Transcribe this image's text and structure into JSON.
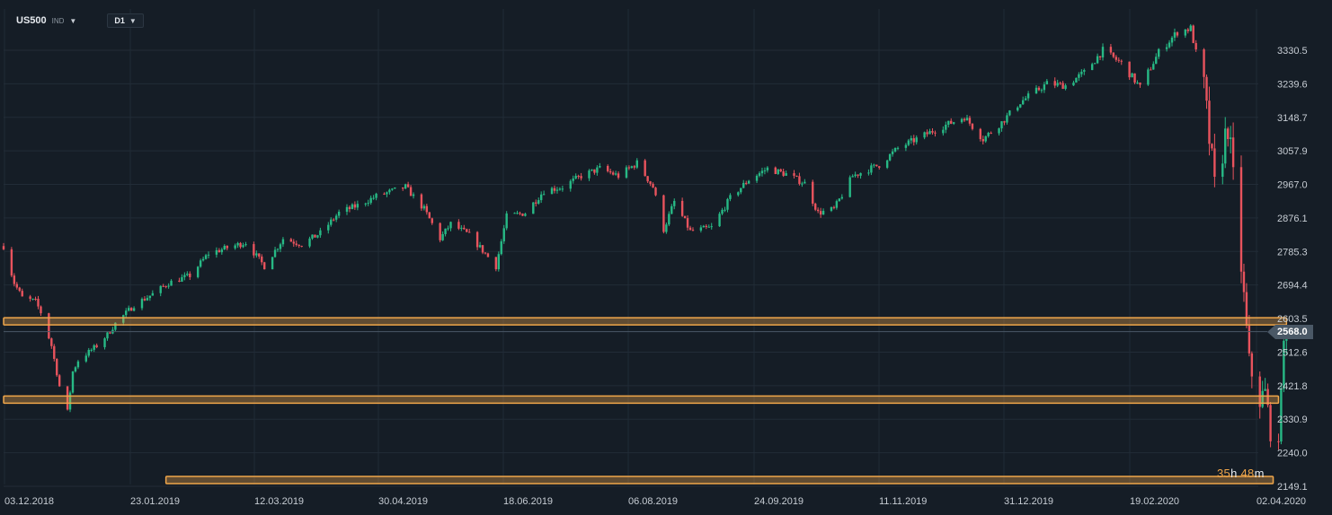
{
  "toolbar": {
    "symbol": "US500",
    "symbol_type": "IND",
    "timeframe": "D1",
    "caret_icon": "chevron-down-icon"
  },
  "colors": {
    "background": "#151d26",
    "grid": "#222c37",
    "bull": "#27b985",
    "bear": "#e8535d",
    "level": "#f0a64a",
    "current_price": "#4a5866"
  },
  "timer": {
    "hours": "35",
    "hours_unit": "h",
    "minutes": "48",
    "minutes_unit": "m"
  },
  "chart_data": {
    "type": "candlestick",
    "symbol": "US500",
    "timeframe": "D1",
    "y_ticks": [
      3330.5,
      3239.6,
      3148.7,
      3057.9,
      2967.0,
      2876.1,
      2785.3,
      2694.4,
      2603.5,
      2512.6,
      2421.8,
      2330.9,
      2240.0,
      2149.1
    ],
    "y_tick_labels": [
      "3330.5",
      "3239.6",
      "3148.7",
      "3057.9",
      "2967.0",
      "2876.1",
      "2785.3",
      "2694.4",
      "2603.5",
      "2512.6",
      "2421.8",
      "2330.9",
      "2240.0",
      "2149.1"
    ],
    "ylim": [
      2149.1,
      3385.0
    ],
    "x_tick_labels": [
      "03.12.2018",
      "23.01.2019",
      "12.03.2019",
      "30.04.2019",
      "18.06.2019",
      "06.08.2019",
      "24.09.2019",
      "11.11.2019",
      "31.12.2019",
      "19.02.2020",
      "02.04.2020"
    ],
    "x_range_dates": [
      "2018-11-30",
      "2020-04-04"
    ],
    "current_price": 2568.0,
    "current_price_label": "2568.0",
    "horizontal_levels": [
      {
        "price": 2596.0,
        "from": "2018-11-30",
        "to": "2020-03-26"
      },
      {
        "price": 2384.0,
        "from": "2018-11-30",
        "to": "2020-03-23"
      },
      {
        "price": 2166.0,
        "from": "2019-01-30",
        "to": "2020-03-21"
      }
    ],
    "path_points": [
      [
        "2018-11-30",
        2800
      ],
      [
        "2018-12-04",
        2700
      ],
      [
        "2018-12-07",
        2660
      ],
      [
        "2018-12-12",
        2650
      ],
      [
        "2018-12-14",
        2620
      ],
      [
        "2018-12-18",
        2530
      ],
      [
        "2018-12-21",
        2420
      ],
      [
        "2018-12-24",
        2351
      ],
      [
        "2018-12-26",
        2460
      ],
      [
        "2018-12-28",
        2490
      ],
      [
        "2019-01-04",
        2530
      ],
      [
        "2019-01-08",
        2560
      ],
      [
        "2019-01-11",
        2590
      ],
      [
        "2019-01-18",
        2640
      ],
      [
        "2019-01-25",
        2670
      ],
      [
        "2019-01-31",
        2700
      ],
      [
        "2019-02-08",
        2720
      ],
      [
        "2019-02-15",
        2780
      ],
      [
        "2019-02-22",
        2795
      ],
      [
        "2019-03-01",
        2810
      ],
      [
        "2019-03-08",
        2745
      ],
      [
        "2019-03-15",
        2820
      ],
      [
        "2019-03-22",
        2805
      ],
      [
        "2019-03-29",
        2835
      ],
      [
        "2019-04-05",
        2890
      ],
      [
        "2019-04-12",
        2910
      ],
      [
        "2019-04-19",
        2935
      ],
      [
        "2019-04-30",
        2960
      ],
      [
        "2019-05-07",
        2900
      ],
      [
        "2019-05-13",
        2820
      ],
      [
        "2019-05-17",
        2860
      ],
      [
        "2019-05-24",
        2830
      ],
      [
        "2019-06-03",
        2745
      ],
      [
        "2019-06-07",
        2880
      ],
      [
        "2019-06-14",
        2890
      ],
      [
        "2019-06-21",
        2950
      ],
      [
        "2019-06-28",
        2960
      ],
      [
        "2019-07-05",
        2990
      ],
      [
        "2019-07-12",
        3010
      ],
      [
        "2019-07-19",
        2990
      ],
      [
        "2019-07-26",
        3025
      ],
      [
        "2019-08-01",
        2960
      ],
      [
        "2019-08-05",
        2845
      ],
      [
        "2019-08-09",
        2920
      ],
      [
        "2019-08-15",
        2840
      ],
      [
        "2019-08-23",
        2850
      ],
      [
        "2019-08-30",
        2930
      ],
      [
        "2019-09-06",
        2980
      ],
      [
        "2019-09-13",
        3010
      ],
      [
        "2019-09-20",
        2995
      ],
      [
        "2019-09-27",
        2970
      ],
      [
        "2019-10-02",
        2890
      ],
      [
        "2019-10-08",
        2900
      ],
      [
        "2019-10-15",
        2990
      ],
      [
        "2019-10-25",
        3020
      ],
      [
        "2019-11-01",
        3065
      ],
      [
        "2019-11-08",
        3090
      ],
      [
        "2019-11-15",
        3115
      ],
      [
        "2019-11-26",
        3150
      ],
      [
        "2019-12-03",
        3090
      ],
      [
        "2019-12-10",
        3135
      ],
      [
        "2019-12-17",
        3190
      ],
      [
        "2019-12-27",
        3240
      ],
      [
        "2020-01-03",
        3235
      ],
      [
        "2020-01-10",
        3270
      ],
      [
        "2020-01-17",
        3330
      ],
      [
        "2020-01-24",
        3295
      ],
      [
        "2020-01-31",
        3230
      ],
      [
        "2020-02-07",
        3325
      ],
      [
        "2020-02-14",
        3380
      ],
      [
        "2020-02-19",
        3390
      ],
      [
        "2020-02-24",
        3225
      ],
      [
        "2020-02-28",
        2955
      ],
      [
        "2020-03-04",
        3130
      ],
      [
        "2020-03-09",
        2745
      ],
      [
        "2020-03-12",
        2480
      ],
      [
        "2020-03-16",
        2385
      ],
      [
        "2020-03-18",
        2400
      ],
      [
        "2020-03-20",
        2305
      ],
      [
        "2020-03-23",
        2237
      ],
      [
        "2020-03-24",
        2448
      ],
      [
        "2020-03-26",
        2568
      ]
    ]
  }
}
